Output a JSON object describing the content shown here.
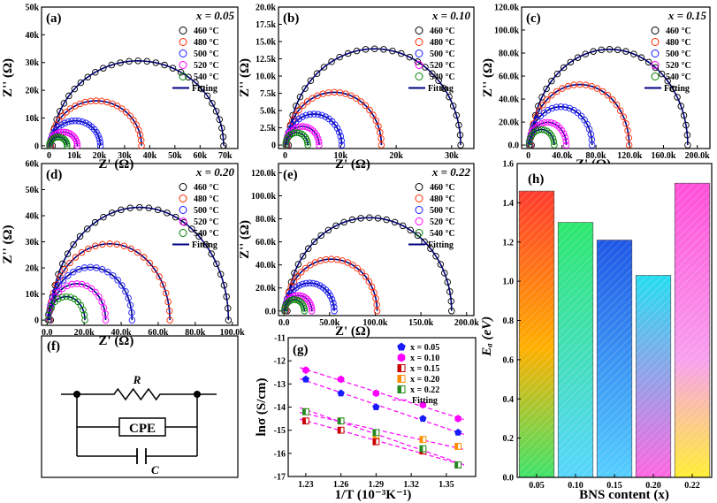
{
  "figure": {
    "chart_data": [
      {
        "type": "scatter",
        "panel_label": "(a)",
        "heading": "x = 0.05",
        "xlabel": "Z' (Ω)",
        "ylabel": "Z'' (Ω)",
        "xlim": [
          -3000,
          75000
        ],
        "ylim": [
          -1000,
          50000
        ],
        "xticks": [
          0,
          10000,
          20000,
          30000,
          40000,
          50000,
          60000,
          70000
        ],
        "xtick_labels": [
          "0",
          "10k",
          "20k",
          "30k",
          "40k",
          "50k",
          "60k",
          "70k"
        ],
        "yticks": [
          0,
          10000,
          20000,
          30000,
          40000,
          50000
        ],
        "ytick_labels": [
          "0",
          "10k",
          "20k",
          "30k",
          "40k",
          "50k"
        ],
        "series": [
          {
            "name": "460 °C",
            "color": "#000000",
            "diameter": 68000
          },
          {
            "name": "480 °C",
            "color": "#ff2a00",
            "diameter": 36000
          },
          {
            "name": "500 °C",
            "color": "#1a1aff",
            "diameter": 20000
          },
          {
            "name": "520 °C",
            "color": "#ff00ff",
            "diameter": 11000
          },
          {
            "name": "540 °C",
            "color": "#008000",
            "diameter": 7000
          }
        ],
        "fit_label": "Fitting",
        "fit_color": "#000080"
      },
      {
        "type": "scatter",
        "panel_label": "(b)",
        "heading": "x = 0.10",
        "xlabel": "Z' (Ω)",
        "ylabel": "Z'' (Ω)",
        "xlim": [
          -1200,
          34000
        ],
        "ylim": [
          -500,
          20000
        ],
        "xticks": [
          0,
          10000,
          20000,
          30000
        ],
        "xtick_labels": [
          "0",
          "10k",
          "20k",
          "30k"
        ],
        "yticks": [
          0,
          2500,
          5000,
          7500,
          10000,
          12500,
          15000,
          17500,
          20000
        ],
        "ytick_labels": [
          "0",
          "2.5k",
          "5.0k",
          "7.5k",
          "10.0k",
          "12.5k",
          "15.0k",
          "17.5k",
          "20.0k"
        ],
        "series": [
          {
            "name": "460 °C",
            "color": "#000000",
            "diameter": 31000
          },
          {
            "name": "480 °C",
            "color": "#ff2a00",
            "diameter": 17000
          },
          {
            "name": "500 °C",
            "color": "#1a1aff",
            "diameter": 10000
          },
          {
            "name": "520 °C",
            "color": "#ff00ff",
            "diameter": 6000
          },
          {
            "name": "540 °C",
            "color": "#008000",
            "diameter": 4000
          }
        ],
        "fit_label": "Fitting",
        "fit_color": "#000080"
      },
      {
        "type": "scatter",
        "panel_label": "(c)",
        "heading": "x = 0.15",
        "xlabel": "Z' (Ω)",
        "ylabel": "Z'' (Ω)",
        "xlim": [
          -8000,
          215000
        ],
        "ylim": [
          -3000,
          120000
        ],
        "xticks": [
          0,
          40000,
          80000,
          120000,
          160000,
          200000
        ],
        "xtick_labels": [
          "0",
          "40.0k",
          "80.0k",
          "120.0k",
          "160.0k",
          "200.0k"
        ],
        "yticks": [
          0,
          20000,
          40000,
          60000,
          80000,
          100000,
          120000
        ],
        "ytick_labels": [
          "0.0",
          "20.0k",
          "40.0k",
          "60.0k",
          "80.0k",
          "100.0k",
          "120.0k"
        ],
        "series": [
          {
            "name": "460 °C",
            "color": "#000000",
            "diameter": 185000
          },
          {
            "name": "480 °C",
            "color": "#ff2a00",
            "diameter": 117000
          },
          {
            "name": "500 °C",
            "color": "#1a1aff",
            "diameter": 74000
          },
          {
            "name": "520 °C",
            "color": "#ff00ff",
            "diameter": 44000
          },
          {
            "name": "540 °C",
            "color": "#008000",
            "diameter": 30000
          }
        ],
        "fit_label": "Fitting",
        "fit_color": "#000080"
      },
      {
        "type": "scatter",
        "panel_label": "(d)",
        "heading": "x = 0.20",
        "xlabel": "Z' (Ω)",
        "ylabel": "Z'' (Ω)",
        "xlim": [
          -3000,
          103000
        ],
        "ylim": [
          -2000,
          60000
        ],
        "xticks": [
          0,
          20000,
          40000,
          60000,
          80000,
          100000
        ],
        "xtick_labels": [
          "0.0",
          "20.0k",
          "40.0k",
          "60.0k",
          "80.0k",
          "100.0k"
        ],
        "yticks": [
          0,
          10000,
          20000,
          30000,
          40000,
          50000,
          60000
        ],
        "ytick_labels": [
          "0",
          "10k",
          "20k",
          "30k",
          "40k",
          "50k",
          "60k"
        ],
        "series": [
          {
            "name": "460 °C",
            "color": "#000000",
            "diameter": 96000
          },
          {
            "name": "480 °C",
            "color": "#ff2a00",
            "diameter": 65000
          },
          {
            "name": "500 °C",
            "color": "#1a1aff",
            "diameter": 45000
          },
          {
            "name": "520 °C",
            "color": "#ff00ff",
            "diameter": 31000
          },
          {
            "name": "540 °C",
            "color": "#008000",
            "diameter": 20000
          }
        ],
        "fit_label": "Fitting",
        "fit_color": "#000080"
      },
      {
        "type": "scatter",
        "panel_label": "(e)",
        "heading": "x = 0.22",
        "xlabel": "Z' (Ω)",
        "ylabel": "Z'' (Ω)",
        "xlim": [
          -6000,
          208000
        ],
        "ylim": [
          -4000,
          128000
        ],
        "xticks": [
          0,
          50000,
          100000,
          150000,
          200000
        ],
        "xtick_labels": [
          "0.0",
          "50.0k",
          "100.0k",
          "150.0k",
          "200.0k"
        ],
        "yticks": [
          0,
          20000,
          40000,
          60000,
          80000,
          100000,
          120000
        ],
        "ytick_labels": [
          "0.0",
          "20.0k",
          "40.0k",
          "60.0k",
          "80.0k",
          "100.0k",
          "120.0k"
        ],
        "series": [
          {
            "name": "460 °C",
            "color": "#000000",
            "diameter": 180000
          },
          {
            "name": "480 °C",
            "color": "#ff2a00",
            "diameter": 100000
          },
          {
            "name": "500 °C",
            "color": "#1a1aff",
            "diameter": 54000
          },
          {
            "name": "520 °C",
            "color": "#ff00ff",
            "diameter": 30000
          },
          {
            "name": "540 °C",
            "color": "#008000",
            "diameter": 22000
          }
        ],
        "fit_label": "Fitting",
        "fit_color": "#000080"
      },
      {
        "type": "diagram",
        "panel_label": "(f)",
        "labels": [
          "R",
          "CPE",
          "C"
        ]
      },
      {
        "type": "scatter",
        "panel_label": "(g)",
        "xlabel": "1/T (10⁻³K⁻¹)",
        "ylabel": "lnσ (S/cm)",
        "xlim": [
          1.215,
          1.375
        ],
        "ylim": [
          -17,
          -11
        ],
        "xticks": [
          1.23,
          1.26,
          1.29,
          1.32,
          1.35
        ],
        "xtick_labels": [
          "1.23",
          "1.26",
          "1.29",
          "1.32",
          "1.35"
        ],
        "yticks": [
          -17,
          -16,
          -15,
          -14,
          -13,
          -12,
          -11
        ],
        "ytick_labels": [
          "-17",
          "-16",
          "-15",
          "-14",
          "-13",
          "-12",
          "-11"
        ],
        "x": [
          1.23,
          1.26,
          1.29,
          1.33,
          1.36
        ],
        "series": [
          {
            "name": "x = 0.05",
            "color": "#1a1aff",
            "marker": "pentagon",
            "values": [
              -12.8,
              -13.4,
              -14.0,
              -14.5,
              -15.1
            ]
          },
          {
            "name": "x = 0.10",
            "color": "#ff00ff",
            "marker": "hexagon",
            "values": [
              -12.4,
              -12.8,
              -13.4,
              -13.9,
              -14.5
            ]
          },
          {
            "name": "x = 0.15",
            "color": "#cc0000",
            "marker": "square",
            "values": [
              -14.6,
              -15.0,
              -15.5,
              -15.9,
              -16.5
            ]
          },
          {
            "name": "x = 0.20",
            "color": "#ff8c00",
            "marker": "square",
            "values": [
              -14.2,
              -14.6,
              -15.2,
              -15.4,
              -15.7
            ]
          },
          {
            "name": "x = 0.22",
            "color": "#228b22",
            "marker": "square",
            "values": [
              -14.2,
              -14.6,
              -15.1,
              -15.8,
              -16.5
            ]
          }
        ],
        "fit_label": "Fitting",
        "fit_color": "#ff00ff"
      },
      {
        "type": "bar",
        "panel_label": "(h)",
        "xlabel": "BNS content (x)",
        "ylabel": "Eₐ (eV)",
        "categories": [
          "0.05",
          "0.10",
          "0.15",
          "0.20",
          "0.22"
        ],
        "values": [
          1.46,
          1.3,
          1.21,
          1.03,
          1.5
        ],
        "ylim": [
          0,
          1.6
        ],
        "yticks": [
          0,
          0.2,
          0.4,
          0.6,
          0.8,
          1.0,
          1.2,
          1.4,
          1.6
        ],
        "ytick_labels": [
          "0.0",
          "0.2",
          "0.4",
          "0.6",
          "0.8",
          "1.0",
          "1.2",
          "1.4",
          "1.6"
        ]
      }
    ]
  }
}
